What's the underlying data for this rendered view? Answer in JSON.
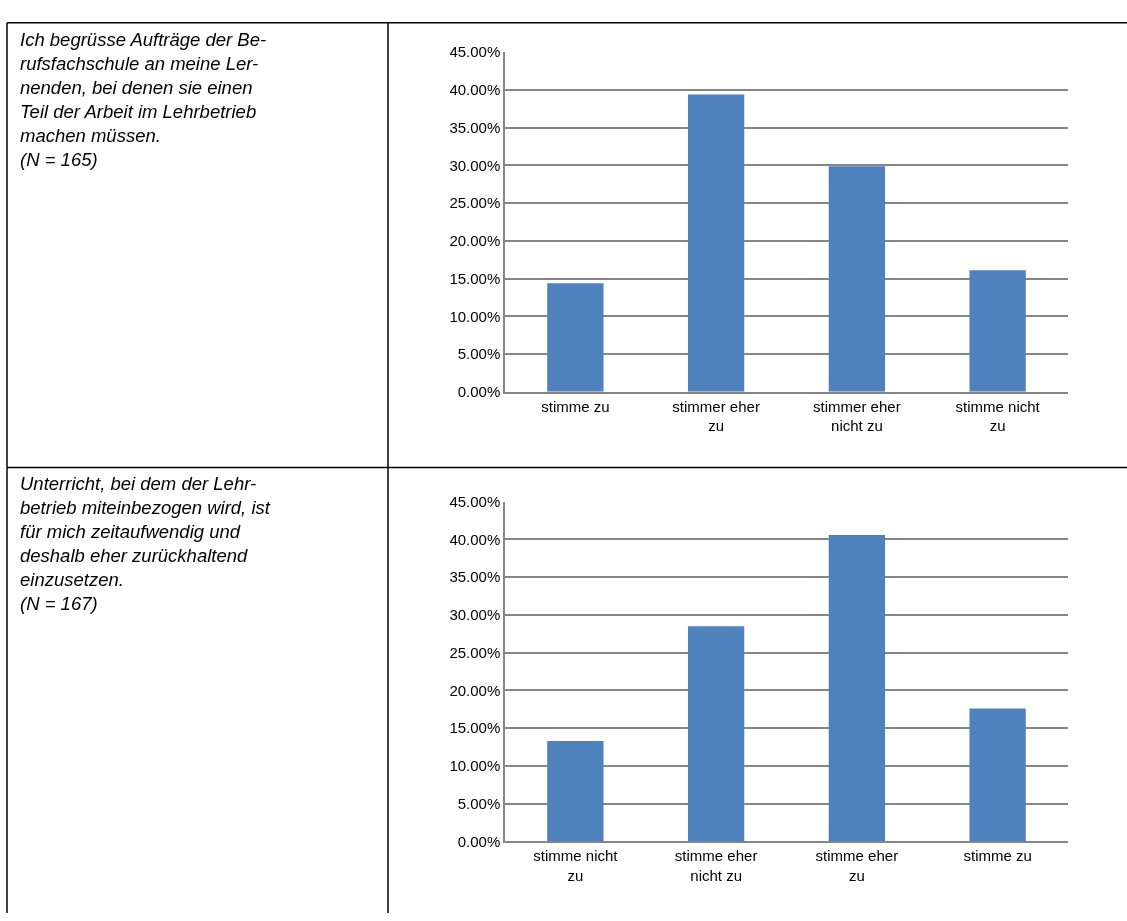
{
  "chart_data": [
    {
      "type": "other",
      "title": "Ich begrüsse Aufträge der Be-\nrufsfachschule an meine Ler-\nnenden, bei denen sie einen\nTeil der Arbeit im Lehrbetrieb\nmachen müssen.",
      "subtitle": "(N = 165)"
    },
    {
      "type": "bar",
      "categories": [
        "stimme zu",
        "stimmer eher zu",
        "stimmer eher nicht zu",
        "stimme nicht zu"
      ],
      "values": [
        14.4,
        39.4,
        29.9,
        16.1
      ],
      "color": "#4f81bd",
      "ylim": [
        0,
        45
      ],
      "yticks": [
        {
          "value": 0,
          "label": "0.00%"
        },
        {
          "value": 5,
          "label": "5.00%"
        },
        {
          "value": 10,
          "label": "10.00%"
        },
        {
          "value": 15,
          "label": "15.00%"
        },
        {
          "value": 20,
          "label": "20.00%"
        },
        {
          "value": 25,
          "label": "25.00%"
        },
        {
          "value": 30,
          "label": "30.00%"
        },
        {
          "value": 35,
          "label": "35.00%"
        },
        {
          "value": 40,
          "label": "40.00%"
        },
        {
          "value": 45,
          "label": "45.00%"
        }
      ],
      "grid": "y"
    },
    {
      "type": "other",
      "title": "Unterricht, bei dem der Lehr-\nbetrieb miteinbezogen wird, ist\nfür mich zeitaufwendig und\ndeshalb eher zurückhaltend\neinzusetzen.",
      "subtitle": "(N = 167)"
    },
    {
      "type": "bar",
      "categories": [
        "stimme nicht zu",
        "stimme eher nicht zu",
        "stimme eher zu",
        "stimme zu"
      ],
      "values": [
        13.3,
        28.5,
        40.6,
        17.6
      ],
      "color": "#4f81bd",
      "ylim": [
        0,
        45
      ],
      "yticks": [
        {
          "value": 0,
          "label": "0.00%"
        },
        {
          "value": 5,
          "label": "5.00%"
        },
        {
          "value": 10,
          "label": "10.00%"
        },
        {
          "value": 15,
          "label": "15.00%"
        },
        {
          "value": 20,
          "label": "20.00%"
        },
        {
          "value": 25,
          "label": "25.00%"
        },
        {
          "value": 30,
          "label": "30.00%"
        },
        {
          "value": 35,
          "label": "35.00%"
        },
        {
          "value": 40,
          "label": "40.00%"
        },
        {
          "value": 45,
          "label": "45.00%"
        }
      ],
      "grid": "y"
    }
  ]
}
